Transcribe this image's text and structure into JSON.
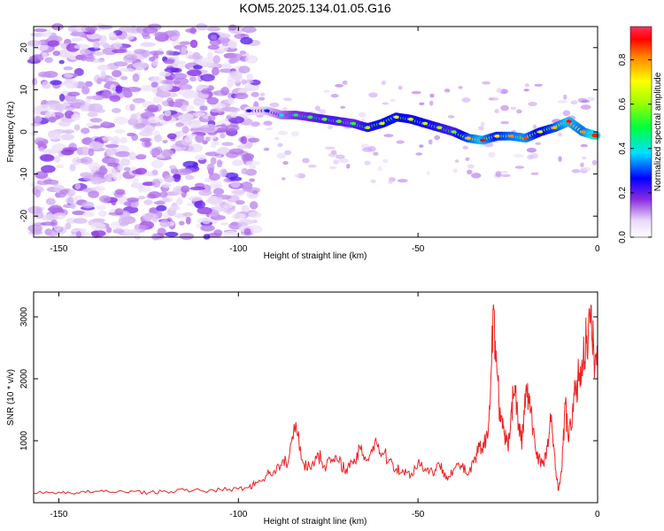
{
  "title": "KOM5.2025.134.01.05.G16",
  "chart_data": [
    {
      "type": "heatmap",
      "xlabel": "Height of straight line (km)",
      "ylabel": "Frequency (Hz)",
      "xlim": [
        -157,
        0
      ],
      "ylim": [
        -25,
        25
      ],
      "xticks": [
        -150,
        -100,
        -50,
        0
      ],
      "yticks": [
        -20,
        -10,
        0,
        10,
        20
      ],
      "colorbar": {
        "label": "Normalized spectral amplitude",
        "range": [
          0,
          0.95
        ],
        "ticks": [
          0.0,
          0.2,
          0.4,
          0.6,
          0.8
        ]
      },
      "ridge": {
        "x": [
          -97,
          -92,
          -88,
          -84,
          -80,
          -76,
          -72,
          -68,
          -64,
          -60,
          -56,
          -52,
          -48,
          -44,
          -40,
          -36,
          -32,
          -28,
          -24,
          -20,
          -16,
          -12,
          -8,
          -4,
          0
        ],
        "frequency": [
          5,
          5,
          4,
          4,
          3.5,
          3,
          2.5,
          2,
          1,
          2,
          3.5,
          3,
          2,
          1,
          0,
          -1.5,
          -2,
          -1,
          -1,
          -1.5,
          0,
          1,
          2.5,
          0,
          -1
        ],
        "amplitude": [
          0.15,
          0.2,
          0.3,
          0.4,
          0.45,
          0.5,
          0.5,
          0.45,
          0.55,
          0.6,
          0.65,
          0.6,
          0.6,
          0.55,
          0.5,
          0.7,
          0.85,
          0.65,
          0.75,
          0.8,
          0.6,
          0.7,
          0.85,
          0.75,
          0.95
        ]
      }
    },
    {
      "type": "line",
      "xlabel": "Height of straight line (km)",
      "ylabel": "SNR (10 * v/v)",
      "xlim": [
        -157,
        0
      ],
      "ylim": [
        0,
        3400
      ],
      "xticks": [
        -150,
        -100,
        -50,
        0
      ],
      "yticks": [
        1000,
        2000,
        3000
      ],
      "color": "#ee2222",
      "x": [
        -157,
        -150,
        -145,
        -140,
        -135,
        -130,
        -125,
        -120,
        -115,
        -110,
        -105,
        -100,
        -97,
        -95,
        -92,
        -90,
        -88,
        -86,
        -84,
        -82,
        -80,
        -78,
        -76,
        -74,
        -72,
        -70,
        -68,
        -66,
        -64,
        -62,
        -60,
        -58,
        -56,
        -54,
        -52,
        -50,
        -48,
        -46,
        -44,
        -42,
        -40,
        -38,
        -36,
        -34,
        -33,
        -32,
        -31,
        -30,
        -29,
        -28,
        -27,
        -26,
        -25,
        -24,
        -23,
        -22,
        -21,
        -20,
        -19,
        -18,
        -17,
        -16,
        -15,
        -14,
        -13,
        -12,
        -11,
        -10,
        -9,
        -8,
        -7,
        -6,
        -5,
        -4,
        -3,
        -2,
        -1,
        0
      ],
      "y": [
        150,
        170,
        160,
        180,
        170,
        190,
        160,
        180,
        200,
        190,
        210,
        220,
        250,
        320,
        450,
        520,
        600,
        700,
        1300,
        650,
        550,
        800,
        600,
        700,
        650,
        550,
        620,
        850,
        700,
        1000,
        800,
        700,
        550,
        500,
        450,
        650,
        550,
        500,
        600,
        420,
        550,
        600,
        450,
        700,
        900,
        800,
        1100,
        1500,
        3200,
        2100,
        1300,
        1100,
        900,
        1500,
        1900,
        1200,
        1000,
        1800,
        1600,
        1200,
        800,
        700,
        600,
        900,
        1300,
        800,
        200,
        500,
        1600,
        1000,
        1500,
        1800,
        2100,
        2300,
        2700,
        2900,
        2400,
        2300
      ]
    }
  ]
}
